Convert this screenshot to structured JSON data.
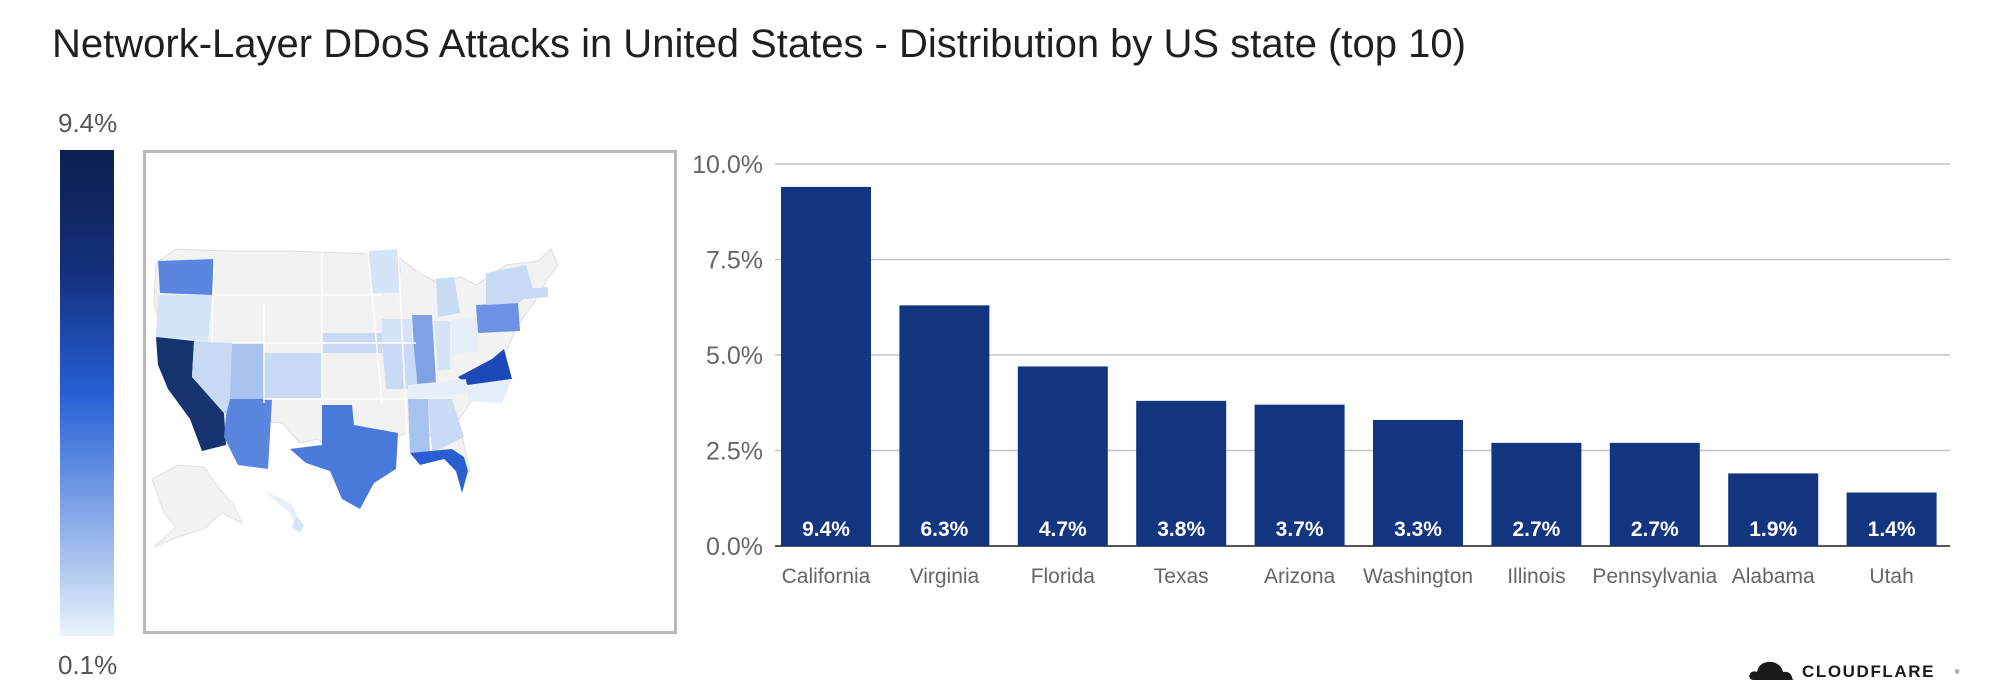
{
  "title": "Network-Layer DDoS Attacks in United States - Distribution by US state (top 10)",
  "color_scale": {
    "max_label": "9.4%",
    "min_label": "0.1%",
    "max_color": "#0c1f4d",
    "min_color": "#e9f3fb"
  },
  "brand": {
    "name": "CLOUDFLARE",
    "bar_color": "#12357f"
  },
  "chart_data": {
    "type": "bar",
    "categories": [
      "California",
      "Virginia",
      "Florida",
      "Texas",
      "Arizona",
      "Washington",
      "Illinois",
      "Pennsylvania",
      "Alabama",
      "Utah"
    ],
    "values": [
      9.4,
      6.3,
      4.7,
      3.8,
      3.7,
      3.3,
      2.7,
      2.7,
      1.9,
      1.4
    ],
    "data_labels": [
      "9.4%",
      "6.3%",
      "4.7%",
      "3.8%",
      "3.7%",
      "3.3%",
      "2.7%",
      "2.7%",
      "1.9%",
      "1.4%"
    ],
    "ylim": [
      0,
      10
    ],
    "yticks": [
      0,
      2.5,
      5,
      7.5,
      10
    ],
    "ytick_labels": [
      "0.0%",
      "2.5%",
      "5.0%",
      "7.5%",
      "10.0%"
    ],
    "grid": true,
    "title": "",
    "xlabel": "",
    "ylabel": ""
  }
}
